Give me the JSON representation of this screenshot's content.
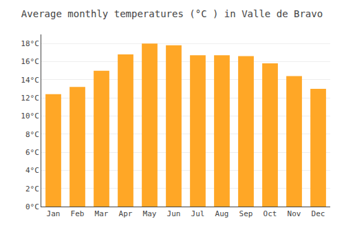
{
  "chart_data": {
    "type": "bar",
    "title": "Average monthly temperatures (°C ) in Valle de Bravo",
    "categories": [
      "Jan",
      "Feb",
      "Mar",
      "Apr",
      "May",
      "Jun",
      "Jul",
      "Aug",
      "Sep",
      "Oct",
      "Nov",
      "Dec"
    ],
    "values": [
      12.4,
      13.2,
      15.0,
      16.8,
      18.0,
      17.8,
      16.7,
      16.7,
      16.6,
      15.8,
      14.4,
      13.0
    ],
    "color": "#FFA726",
    "ylim": [
      0,
      19
    ],
    "yticks": [
      {
        "value": 0,
        "label": "0°C"
      },
      {
        "value": 2,
        "label": "2°C"
      },
      {
        "value": 4,
        "label": "4°C"
      },
      {
        "value": 6,
        "label": "6°C"
      },
      {
        "value": 8,
        "label": "8°C"
      },
      {
        "value": 10,
        "label": "10°C"
      },
      {
        "value": 12,
        "label": "12°C"
      },
      {
        "value": 14,
        "label": "14°C"
      },
      {
        "value": 16,
        "label": "16°C"
      },
      {
        "value": 18,
        "label": "18°C"
      }
    ],
    "grid": true
  }
}
